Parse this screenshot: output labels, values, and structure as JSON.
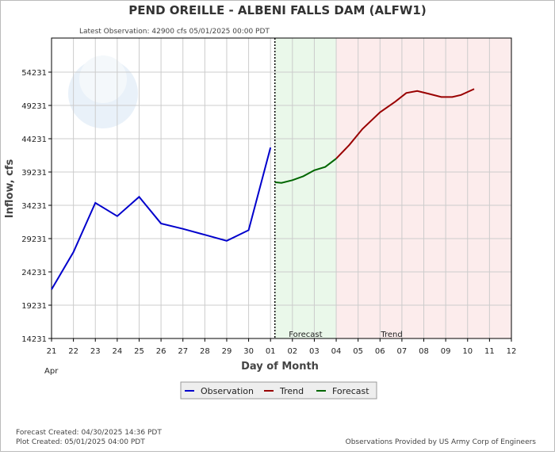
{
  "chart_data": {
    "type": "line",
    "title": "PEND OREILLE - ALBENI FALLS DAM  (ALFW1)",
    "subtitle": "Latest Observation: 42900 cfs 05/01/2025 00:00 PDT",
    "x_label": "Day of Month",
    "y_label": "Inflow, cfs",
    "x_month_label": "Apr",
    "forecast_label": "Forecast",
    "trend_label": "Trend",
    "xlim": [
      0,
      21
    ],
    "xticks": [
      {
        "value": 0,
        "label": "21"
      },
      {
        "value": 1,
        "label": "22"
      },
      {
        "value": 2,
        "label": "23"
      },
      {
        "value": 3,
        "label": "24"
      },
      {
        "value": 4,
        "label": "25"
      },
      {
        "value": 5,
        "label": "26"
      },
      {
        "value": 6,
        "label": "27"
      },
      {
        "value": 7,
        "label": "28"
      },
      {
        "value": 8,
        "label": "29"
      },
      {
        "value": 9,
        "label": "30"
      },
      {
        "value": 10,
        "label": "01"
      },
      {
        "value": 11,
        "label": "02"
      },
      {
        "value": 12,
        "label": "03"
      },
      {
        "value": 13,
        "label": "04"
      },
      {
        "value": 14,
        "label": "05"
      },
      {
        "value": 15,
        "label": "06"
      },
      {
        "value": 16,
        "label": "07"
      },
      {
        "value": 17,
        "label": "08"
      },
      {
        "value": 18,
        "label": "09"
      },
      {
        "value": 19,
        "label": "10"
      },
      {
        "value": 20,
        "label": "11"
      },
      {
        "value": 21,
        "label": "12"
      }
    ],
    "ylim": [
      14231,
      59350
    ],
    "yticks": [
      14231,
      19231,
      24231,
      29231,
      34231,
      39231,
      44231,
      49231,
      54231
    ],
    "grid": true,
    "series": [
      {
        "name": "Observation",
        "color": "#0000cc",
        "x": [
          0,
          1,
          2,
          3,
          4,
          5,
          6,
          7,
          8,
          9,
          10
        ],
        "values": [
          21600,
          27200,
          34600,
          32600,
          35500,
          31500,
          30700,
          29800,
          28900,
          30500,
          42900
        ]
      },
      {
        "name": "Trend",
        "color": "#990000",
        "x": [
          13.0,
          13.6,
          14.2,
          15.0,
          15.7,
          16.2,
          16.7,
          17.2,
          17.8,
          18.3,
          18.7,
          19.3
        ],
        "values": [
          41250,
          43300,
          45700,
          48200,
          49800,
          51100,
          51400,
          51000,
          50500,
          50500,
          50800,
          51700
        ]
      },
      {
        "name": "Forecast",
        "color": "#006600",
        "x": [
          10.2,
          10.5,
          11.0,
          11.5,
          12.0,
          12.5,
          13.0
        ],
        "values": [
          37700,
          37600,
          38000,
          38600,
          39500,
          40000,
          41250
        ]
      }
    ],
    "footer_left": [
      "Forecast Created: 04/30/2025 14:36 PDT",
      "Plot Created: 05/01/2025 04:00 PDT"
    ],
    "footer_right": "Observations Provided by US Army Corp of Engineers"
  }
}
